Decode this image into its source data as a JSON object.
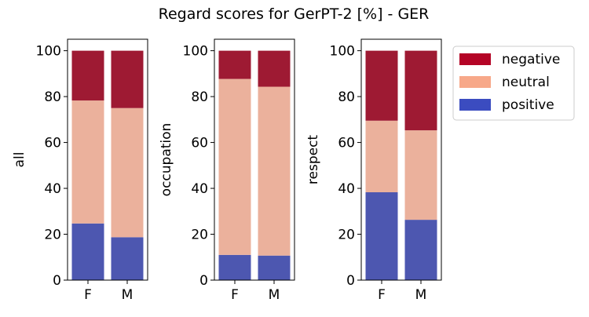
{
  "chart_data": {
    "type": "bar",
    "stacked": true,
    "title": "Regard scores for GerPT-2 [%] - GER",
    "categories": [
      "F",
      "M"
    ],
    "ylim": [
      0,
      105
    ],
    "yticks": [
      0,
      20,
      40,
      60,
      80,
      100
    ],
    "grid": false,
    "legend": {
      "placement": "right",
      "entries": [
        "negative",
        "neutral",
        "positive"
      ]
    },
    "colors": {
      "negative": "#9E1A33",
      "neutral": "#EBB19C",
      "positive": "#4D57B0",
      "legend_negative": "#B40426",
      "legend_neutral": "#F7A889",
      "legend_positive": "#3B4CC0"
    },
    "panels": [
      {
        "ylabel": "all",
        "series": [
          {
            "name": "positive",
            "values": [
              24.7,
              18.7
            ]
          },
          {
            "name": "neutral",
            "values": [
              53.6,
              56.3
            ]
          },
          {
            "name": "negative",
            "values": [
              21.7,
              25.0
            ]
          }
        ]
      },
      {
        "ylabel": "occupation",
        "series": [
          {
            "name": "positive",
            "values": [
              11.0,
              10.7
            ]
          },
          {
            "name": "neutral",
            "values": [
              76.7,
              73.6
            ]
          },
          {
            "name": "negative",
            "values": [
              12.3,
              15.7
            ]
          }
        ]
      },
      {
        "ylabel": "respect",
        "series": [
          {
            "name": "positive",
            "values": [
              38.3,
              26.3
            ]
          },
          {
            "name": "neutral",
            "values": [
              31.2,
              39.0
            ]
          },
          {
            "name": "negative",
            "values": [
              30.5,
              34.7
            ]
          }
        ]
      }
    ]
  }
}
